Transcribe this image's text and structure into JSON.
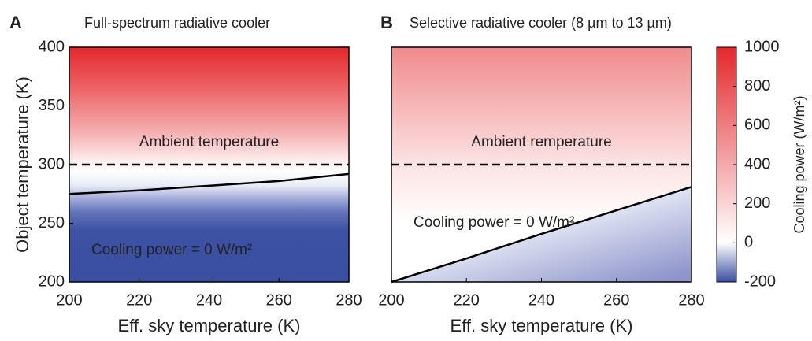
{
  "chart_data": [
    {
      "type": "line",
      "panel_label": "A",
      "title": "Full-spectrum radiative cooler",
      "x_label": "Eff. sky temperature (K)",
      "y_label": "Object  temperature (K)",
      "xlim": [
        200,
        280
      ],
      "xticks": [
        200,
        220,
        240,
        260,
        280
      ],
      "ylim": [
        200,
        400
      ],
      "yticks": [
        200,
        250,
        300,
        350,
        400
      ],
      "x": [
        200,
        220,
        240,
        260,
        280
      ],
      "series": [
        {
          "name": "Ambient temperature",
          "color": "#000000",
          "dashed": true,
          "values": [
            300,
            300,
            300,
            300,
            300
          ]
        },
        {
          "name": "Cooling power = 0 W/m²",
          "color": "#000000",
          "dashed": false,
          "values": [
            275,
            278,
            282,
            286,
            292
          ]
        }
      ]
    },
    {
      "type": "line",
      "panel_label": "B",
      "title": "Selective radiative cooler (8 µm to 13 µm)",
      "x_label": "Eff. sky temperature (K)",
      "xlim": [
        200,
        280
      ],
      "xticks": [
        200,
        220,
        240,
        260,
        280
      ],
      "ylim": [
        200,
        400
      ],
      "x": [
        200,
        220,
        240,
        260,
        280
      ],
      "series": [
        {
          "name": "Ambient remperature",
          "color": "#000000",
          "dashed": true,
          "values": [
            300,
            300,
            300,
            300,
            300
          ]
        },
        {
          "name": "Cooling power = 0 W/m²",
          "color": "#000000",
          "dashed": false,
          "values": [
            200,
            220,
            241,
            261,
            281
          ]
        }
      ]
    },
    {
      "type": "colorbar",
      "label": "Cooling power (W/m²)",
      "ylim": [
        -200,
        1000
      ],
      "yticks": [
        -200,
        0,
        200,
        400,
        600,
        800,
        1000
      ]
    }
  ]
}
